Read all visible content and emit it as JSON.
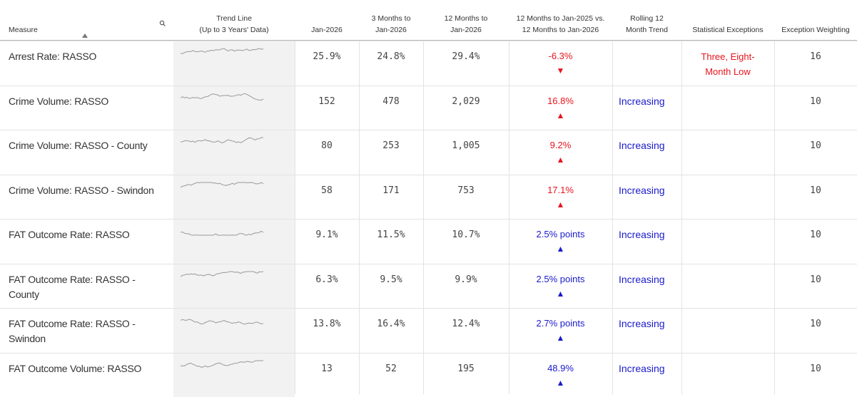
{
  "table": {
    "columns": [
      {
        "lines": [
          "Measure"
        ]
      },
      {
        "lines": [
          "Trend Line",
          "(Up to 3 Years' Data)"
        ]
      },
      {
        "lines": [
          "Jan-2026"
        ]
      },
      {
        "lines": [
          "3 Months to",
          "Jan-2026"
        ]
      },
      {
        "lines": [
          "12 Months to",
          "Jan-2026"
        ]
      },
      {
        "lines": [
          "12 Months to Jan-2025 vs.",
          "12 Months to Jan-2026"
        ]
      },
      {
        "lines": [
          "Rolling 12",
          "Month Trend"
        ]
      },
      {
        "lines": [
          "Statistical Exceptions"
        ]
      },
      {
        "lines": [
          "Exception Weighting"
        ]
      }
    ],
    "rows": [
      {
        "measure": "Arrest Rate: RASSO",
        "jan_2026": "25.9%",
        "three_months": "24.8%",
        "twelve_months": "29.4%",
        "change": "-6.3%",
        "change_arrow": "▼",
        "change_color": "#e8141c",
        "rolling_trend": "",
        "exceptions": "Three, Eight-Month Low",
        "weighting": "16"
      },
      {
        "measure": "Crime Volume: RASSO",
        "jan_2026": "152",
        "three_months": "478",
        "twelve_months": "2,029",
        "change": "16.8%",
        "change_arrow": "▲",
        "change_color": "#e8141c",
        "rolling_trend": "Increasing",
        "exceptions": "",
        "weighting": "10"
      },
      {
        "measure": "Crime Volume: RASSO - County",
        "jan_2026": "80",
        "three_months": "253",
        "twelve_months": "1,005",
        "change": "9.2%",
        "change_arrow": "▲",
        "change_color": "#e8141c",
        "rolling_trend": "Increasing",
        "exceptions": "",
        "weighting": "10"
      },
      {
        "measure": "Crime Volume: RASSO - Swindon",
        "jan_2026": "58",
        "three_months": "171",
        "twelve_months": "753",
        "change": "17.1%",
        "change_arrow": "▲",
        "change_color": "#e8141c",
        "rolling_trend": "Increasing",
        "exceptions": "",
        "weighting": "10"
      },
      {
        "measure": "FAT Outcome Rate: RASSO",
        "jan_2026": "9.1%",
        "three_months": "11.5%",
        "twelve_months": "10.7%",
        "change": "2.5% points",
        "change_arrow": "▲",
        "change_color": "#1a1acc",
        "rolling_trend": "Increasing",
        "exceptions": "",
        "weighting": "10"
      },
      {
        "measure": "FAT Outcome Rate: RASSO - County",
        "jan_2026": "6.3%",
        "three_months": "9.5%",
        "twelve_months": "9.9%",
        "change": "2.5% points",
        "change_arrow": "▲",
        "change_color": "#1a1acc",
        "rolling_trend": "Increasing",
        "exceptions": "",
        "weighting": "10"
      },
      {
        "measure": "FAT Outcome Rate: RASSO - Swindon",
        "jan_2026": "13.8%",
        "three_months": "16.4%",
        "twelve_months": "12.4%",
        "change": "2.7% points",
        "change_arrow": "▲",
        "change_color": "#1a1acc",
        "rolling_trend": "Increasing",
        "exceptions": "",
        "weighting": "10"
      },
      {
        "measure": "FAT Outcome Volume: RASSO",
        "jan_2026": "13",
        "three_months": "52",
        "twelve_months": "195",
        "change": "48.9%",
        "change_arrow": "▲",
        "change_color": "#1a1acc",
        "rolling_trend": "Increasing",
        "exceptions": "",
        "weighting": "10"
      }
    ]
  }
}
